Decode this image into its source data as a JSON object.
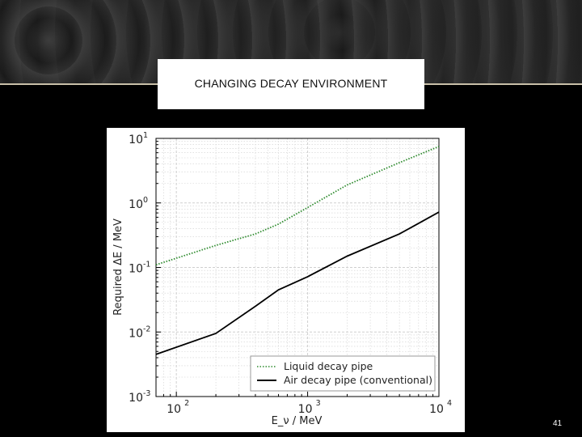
{
  "slide": {
    "title": "CHANGING DECAY ENVIRONMENT",
    "page_number": "41"
  },
  "colors": {
    "liquid": "#2e8b2e",
    "air": "#000000",
    "grid": "#cfcfcf"
  },
  "chart_data": {
    "type": "line",
    "xlabel": "E_ν / MeV",
    "ylabel": "Required ΔE / MeV",
    "x_scale": "log",
    "y_scale": "log",
    "xlim": [
      70,
      10000
    ],
    "ylim": [
      0.001,
      10
    ],
    "x_ticks": [
      {
        "value": 100,
        "base": "10",
        "exp": "2"
      },
      {
        "value": 1000,
        "base": "10",
        "exp": "3"
      },
      {
        "value": 10000,
        "base": "10",
        "exp": "4"
      }
    ],
    "y_ticks": [
      {
        "value": 0.001,
        "base": "10",
        "exp": "-3"
      },
      {
        "value": 0.01,
        "base": "10",
        "exp": "-2"
      },
      {
        "value": 0.1,
        "base": "10",
        "exp": "-1"
      },
      {
        "value": 1,
        "base": "10",
        "exp": "0"
      },
      {
        "value": 10,
        "base": "10",
        "exp": "1"
      }
    ],
    "grid": true,
    "legend_position": "lower-right",
    "series": [
      {
        "name": "Liquid decay pipe",
        "style": "dotted",
        "x": [
          70,
          200,
          400,
          600,
          1000,
          2000,
          5000,
          10000
        ],
        "y": [
          0.11,
          0.22,
          0.33,
          0.47,
          0.85,
          1.9,
          4.2,
          7.5
        ]
      },
      {
        "name": "Air decay pipe (conventional)",
        "style": "solid",
        "x": [
          70,
          200,
          400,
          600,
          1000,
          2000,
          5000,
          10000
        ],
        "y": [
          0.0045,
          0.0095,
          0.025,
          0.045,
          0.072,
          0.15,
          0.33,
          0.72
        ]
      }
    ]
  }
}
